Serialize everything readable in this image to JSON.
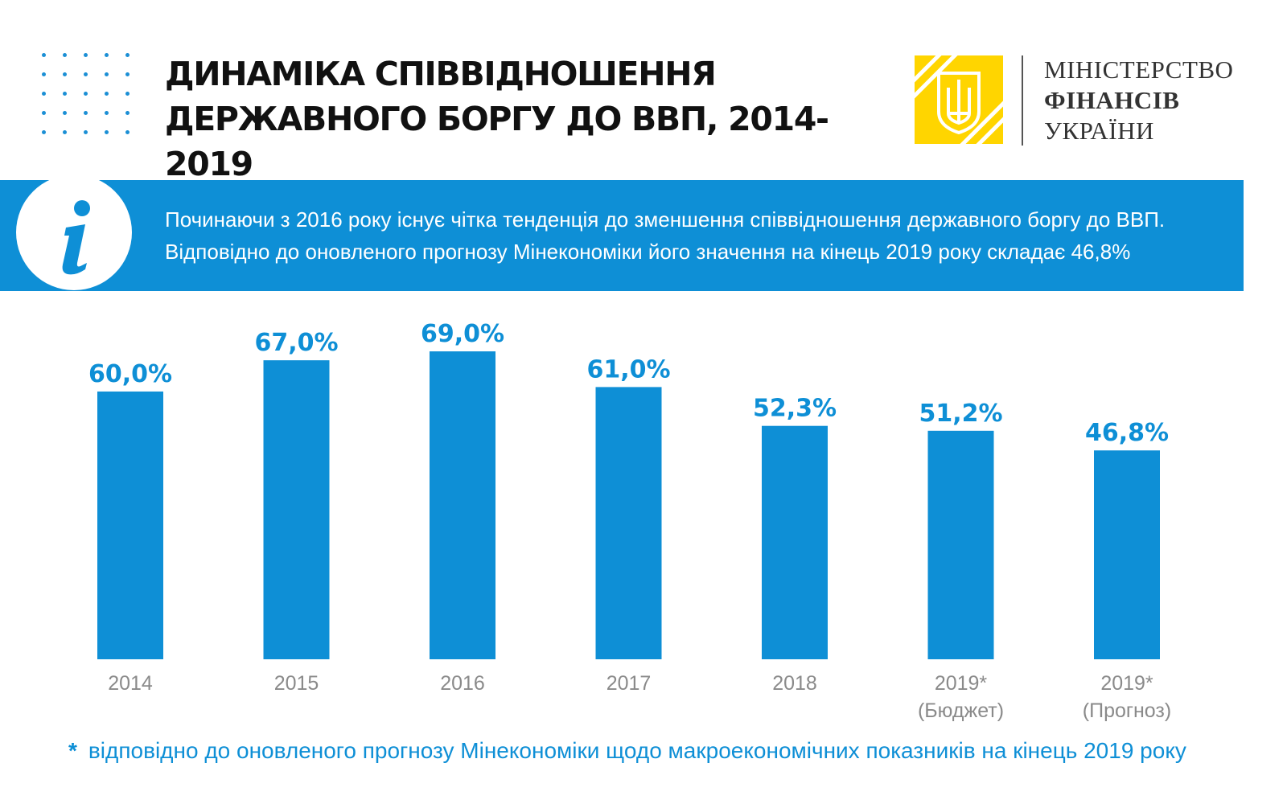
{
  "header": {
    "title_line1": "Динаміка  співвідношення",
    "title_line2": "державного боргу до ВВП, 2014-2019"
  },
  "logo": {
    "line1": "МІНІСТЕРСТВО",
    "line2": "ФІНАНСІВ",
    "line3": "УКРАЇНИ",
    "emblem_icon": "trident-icon",
    "emblem_color": "#ffd500"
  },
  "info": {
    "icon": "info-icon",
    "line1": "Починаючи з 2016 року існує чітка тенденція до зменшення співвідношення державного боргу до ВВП.",
    "line2": "Відповідно до оновленого прогнозу Мінекономіки його значення  на кінець 2019 року складає 46,8%"
  },
  "chart_data": {
    "type": "bar",
    "categories": [
      "2014",
      "2015",
      "2016",
      "2017",
      "2018",
      "2019*\n(Бюджет)",
      "2019*\n(Прогноз)"
    ],
    "values": [
      60.0,
      67.0,
      69.0,
      61.0,
      52.3,
      51.2,
      46.8
    ],
    "value_labels": [
      "60,0%",
      "67,0%",
      "69,0%",
      "61,0%",
      "52,3%",
      "51,2%",
      "46,8%"
    ],
    "unit": "%",
    "ylim": [
      0,
      69.0
    ],
    "grid": false,
    "bar_color": "#0e8fd6",
    "label_color": "#0e8fd6",
    "tick_color": "#8a8a8a"
  },
  "footnote": {
    "star": "*",
    "text": "відповідно до оновленого прогнозу Мінекономіки щодо макроекономічних показників на кінець 2019 року"
  },
  "colors": {
    "accent": "#0e8fd6",
    "title": "#111111"
  }
}
